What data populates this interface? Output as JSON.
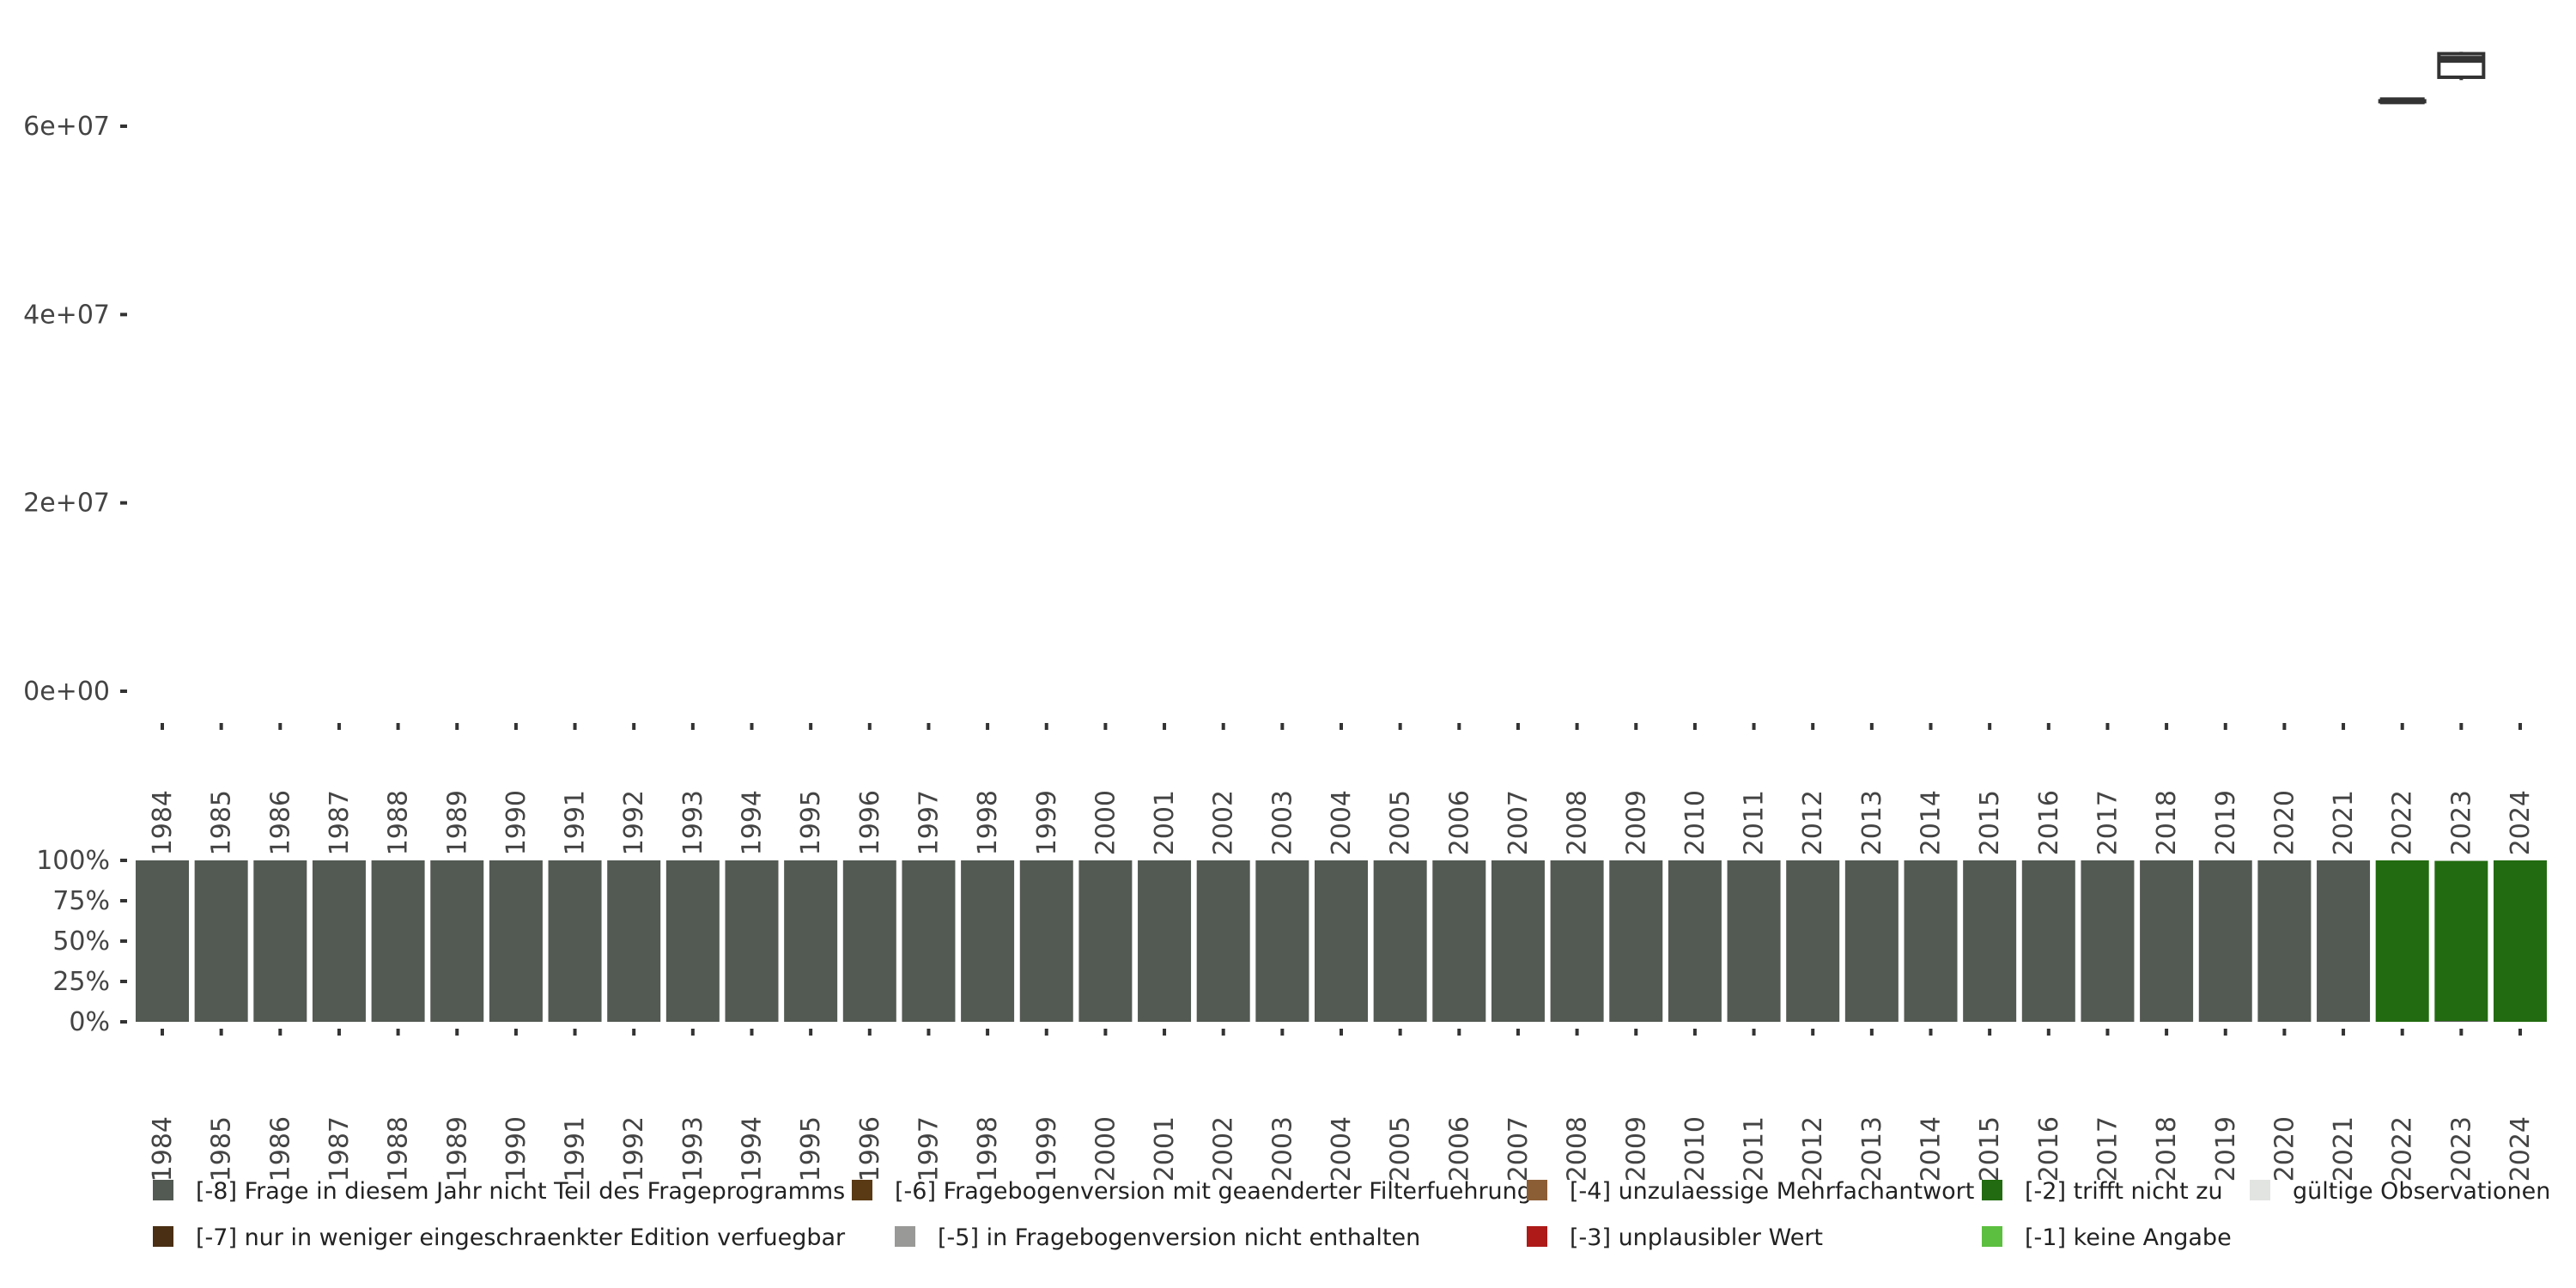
{
  "chart_data": [
    {
      "type": "boxplot",
      "title": "",
      "xlabel": "",
      "ylabel": "",
      "ylim": [
        0,
        70000000
      ],
      "y_ticks": [
        "0e+00",
        "2e+07",
        "4e+07",
        "6e+07"
      ],
      "y_tick_values": [
        0,
        20000000,
        40000000,
        60000000
      ],
      "categories": [
        "1984",
        "1985",
        "1986",
        "1987",
        "1988",
        "1989",
        "1990",
        "1991",
        "1992",
        "1993",
        "1994",
        "1995",
        "1996",
        "1997",
        "1998",
        "1999",
        "2000",
        "2001",
        "2002",
        "2003",
        "2004",
        "2005",
        "2006",
        "2007",
        "2008",
        "2009",
        "2010",
        "2011",
        "2012",
        "2013",
        "2014",
        "2015",
        "2016",
        "2017",
        "2018",
        "2019",
        "2020",
        "2021",
        "2022",
        "2023",
        "2024"
      ],
      "boxes": [
        {
          "category": "2022",
          "min": 62700000,
          "q1": 62700000,
          "median": 62700000,
          "q3": 62700000,
          "max": 62700000
        },
        {
          "category": "2023",
          "min": 64900000,
          "q1": 65200000,
          "median": 67100000,
          "q3": 67700000,
          "max": 67900000
        }
      ],
      "grid": false
    },
    {
      "type": "stacked_bar",
      "ylim": [
        0,
        100
      ],
      "y_ticks": [
        "0%",
        "25%",
        "50%",
        "75%",
        "100%"
      ],
      "categories": [
        "1984",
        "1985",
        "1986",
        "1987",
        "1988",
        "1989",
        "1990",
        "1991",
        "1992",
        "1993",
        "1994",
        "1995",
        "1996",
        "1997",
        "1998",
        "1999",
        "2000",
        "2001",
        "2002",
        "2003",
        "2004",
        "2005",
        "2006",
        "2007",
        "2008",
        "2009",
        "2010",
        "2011",
        "2012",
        "2013",
        "2014",
        "2015",
        "2016",
        "2017",
        "2018",
        "2019",
        "2020",
        "2021",
        "2022",
        "2023",
        "2024"
      ],
      "series": [
        {
          "name": "[-8] Frage in diesem Jahr nicht Teil des Frageprogramms",
          "color": "#535953",
          "values": [
            100,
            100,
            100,
            100,
            100,
            100,
            100,
            100,
            100,
            100,
            100,
            100,
            100,
            100,
            100,
            100,
            100,
            100,
            100,
            100,
            100,
            100,
            100,
            100,
            100,
            100,
            100,
            100,
            100,
            100,
            100,
            100,
            100,
            100,
            100,
            100,
            100,
            100,
            0,
            0.5,
            0
          ]
        },
        {
          "name": "[-2] trifft nicht zu",
          "color": "#226b10",
          "values": [
            0,
            0,
            0,
            0,
            0,
            0,
            0,
            0,
            0,
            0,
            0,
            0,
            0,
            0,
            0,
            0,
            0,
            0,
            0,
            0,
            0,
            0,
            0,
            0,
            0,
            0,
            0,
            0,
            0,
            0,
            0,
            0,
            0,
            0,
            0,
            0,
            0,
            0,
            100,
            99.2,
            100
          ]
        },
        {
          "name": "gültige Observationen",
          "color": "#e2e4e2",
          "values": [
            0,
            0,
            0,
            0,
            0,
            0,
            0,
            0,
            0,
            0,
            0,
            0,
            0,
            0,
            0,
            0,
            0,
            0,
            0,
            0,
            0,
            0,
            0,
            0,
            0,
            0,
            0,
            0,
            0,
            0,
            0,
            0,
            0,
            0,
            0,
            0,
            0,
            0,
            0,
            0.3,
            0
          ]
        }
      ]
    }
  ],
  "legend": [
    {
      "label": "[-8] Frage in diesem Jahr nicht Teil des Frageprogramms",
      "color": "#535953"
    },
    {
      "label": "[-7] nur in weniger eingeschraenkter Edition verfuegbar",
      "color": "#4a2f14"
    },
    {
      "label": "[-6] Fragebogenversion mit geaenderter Filterfuehrung",
      "color": "#5a3a14"
    },
    {
      "label": "[-5] in Fragebogenversion nicht enthalten",
      "color": "#999a97"
    },
    {
      "label": "[-4] unzulaessige Mehrfachantwort",
      "color": "#8c5e36"
    },
    {
      "label": "[-3] unplausibler Wert",
      "color": "#ad1a18"
    },
    {
      "label": "[-2] trifft nicht zu",
      "color": "#226b10"
    },
    {
      "label": "[-1] keine Angabe",
      "color": "#5cbf40"
    },
    {
      "label": "gültige Observationen",
      "color": "#e2e4e2"
    }
  ]
}
